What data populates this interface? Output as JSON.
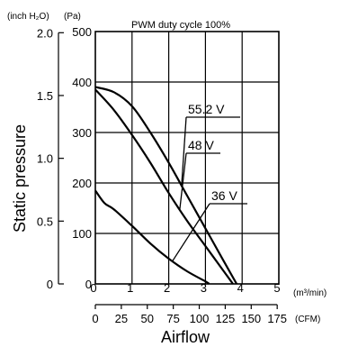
{
  "chart_data": {
    "type": "line",
    "title": "PWM duty cycle 100%",
    "xlabel": "Airflow",
    "ylabel": "Static pressure",
    "x_unit_primary": "(m³/min)",
    "x_unit_secondary": "(CFM)",
    "y_unit_primary": "(Pa)",
    "y_unit_secondary": "(inch H₂O)",
    "xlim": [
      0,
      5
    ],
    "ylim": [
      0,
      500
    ],
    "x_ticks": [
      "0",
      "1",
      "2",
      "3",
      "4",
      "5"
    ],
    "x2_ticks": [
      "0",
      "25",
      "50",
      "75",
      "100",
      "125",
      "150",
      "175"
    ],
    "x2_values": [
      0,
      25,
      50,
      75,
      100,
      125,
      150,
      175
    ],
    "y_ticks": [
      "0",
      "100",
      "200",
      "300",
      "400",
      "500"
    ],
    "y2_ticks": [
      "0",
      "0.5",
      "1.0",
      "1.5",
      "2.0"
    ],
    "y2_values": [
      0,
      0.5,
      1.0,
      1.5,
      2.0
    ],
    "grid": true,
    "series": [
      {
        "name": "55.2 V",
        "x": [
          0,
          0.5,
          1.0,
          1.5,
          2.0,
          2.5,
          3.0,
          3.5,
          3.85
        ],
        "y": [
          390,
          380,
          352,
          300,
          240,
          175,
          110,
          45,
          0
        ]
      },
      {
        "name": "48 V",
        "x": [
          0,
          0.5,
          1.0,
          1.5,
          2.0,
          2.5,
          3.0,
          3.5,
          3.75
        ],
        "y": [
          385,
          345,
          295,
          240,
          180,
          125,
          75,
          25,
          0
        ]
      },
      {
        "name": "36 V",
        "x": [
          0,
          0.25,
          0.5,
          1.0,
          1.5,
          2.0,
          2.5,
          3.0,
          3.1
        ],
        "y": [
          185,
          160,
          148,
          115,
          80,
          50,
          25,
          5,
          0
        ]
      }
    ]
  }
}
